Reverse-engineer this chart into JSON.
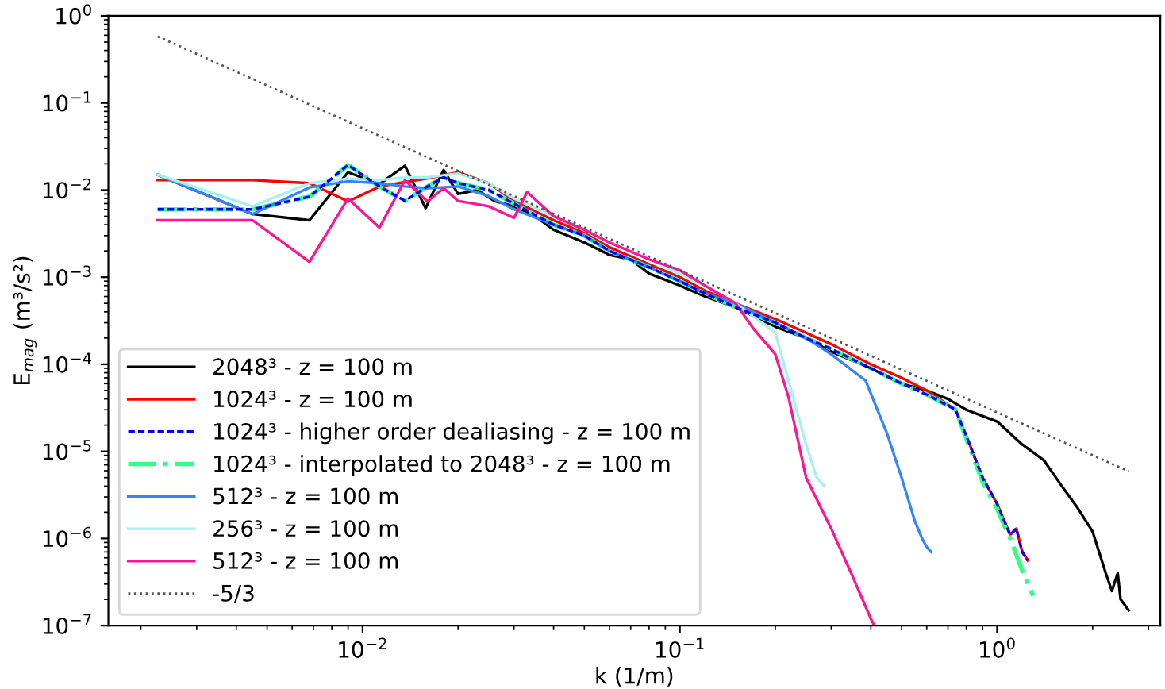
{
  "chart_data": {
    "type": "line",
    "xlabel": "k (1/m)",
    "ylabel": "E$_{mag}$ (m³/s²)",
    "log": "xy",
    "xlim": [
      0.00158,
      3.27
    ],
    "ylim": [
      1e-07,
      1
    ],
    "xticks": [
      {
        "value": 0.01,
        "label": "10$^{−2}$"
      },
      {
        "value": 0.1,
        "label": "10$^{−1}$"
      },
      {
        "value": 1,
        "label": "10$^{0}$"
      }
    ],
    "yticks": [
      {
        "value": 1e-07,
        "label": "10$^{−7}$"
      },
      {
        "value": 1e-06,
        "label": "10$^{−6}$"
      },
      {
        "value": 1e-05,
        "label": "10$^{−5}$"
      },
      {
        "value": 0.0001,
        "label": "10$^{−4}$"
      },
      {
        "value": 0.001,
        "label": "10$^{−3}$"
      },
      {
        "value": 0.01,
        "label": "10$^{−2}$"
      },
      {
        "value": 0.1,
        "label": "10$^{−1}$"
      },
      {
        "value": 1,
        "label": "10$^{0}$"
      }
    ],
    "grid": false,
    "legend": "bottom left",
    "series": [
      {
        "name": "2048³ - z = 100 m",
        "color": "#000000",
        "line_style": "solid",
        "x": [
          0.00226,
          0.0045,
          0.0068,
          0.009,
          0.0113,
          0.0136,
          0.0158,
          0.018,
          0.02,
          0.023,
          0.026,
          0.03,
          0.035,
          0.04,
          0.05,
          0.06,
          0.07,
          0.08,
          0.1,
          0.12,
          0.15,
          0.2,
          0.25,
          0.3,
          0.4,
          0.5,
          0.6,
          0.7,
          0.8,
          1.0,
          1.2,
          1.4,
          1.6,
          1.8,
          2.0,
          2.2,
          2.3,
          2.4,
          2.45,
          2.6
        ],
        "values": [
          0.015,
          0.0053,
          0.0045,
          0.016,
          0.0117,
          0.019,
          0.0062,
          0.017,
          0.009,
          0.01,
          0.0075,
          0.0065,
          0.005,
          0.0035,
          0.0025,
          0.0018,
          0.0016,
          0.0011,
          0.0008,
          0.0006,
          0.00045,
          0.00027,
          0.0002,
          0.00014,
          9e-05,
          6e-05,
          5e-05,
          4e-05,
          3e-05,
          2.2e-05,
          1.2e-05,
          8e-06,
          4e-06,
          2.2e-06,
          1.2e-06,
          4e-07,
          2.5e-07,
          4e-07,
          2e-07,
          1.5e-07
        ]
      },
      {
        "name": "1024³ - z = 100 m",
        "color": "#ff0000",
        "line_style": "solid",
        "x": [
          0.00226,
          0.0045,
          0.0068,
          0.009,
          0.0113,
          0.0158,
          0.02,
          0.025,
          0.03,
          0.04,
          0.05,
          0.06,
          0.08,
          0.1,
          0.12,
          0.15,
          0.2,
          0.25,
          0.3,
          0.4,
          0.5,
          0.6,
          0.74,
          0.8,
          0.9,
          1.0,
          1.1,
          1.15,
          1.2,
          1.25
        ],
        "values": [
          0.013,
          0.013,
          0.012,
          0.0074,
          0.011,
          0.0135,
          0.016,
          0.012,
          0.0075,
          0.0045,
          0.0032,
          0.0022,
          0.0014,
          0.001,
          0.0007,
          0.0005,
          0.00033,
          0.00023,
          0.00017,
          0.0001,
          7e-05,
          5e-05,
          3e-05,
          1.5e-05,
          5e-06,
          2.5e-06,
          1.1e-06,
          1.3e-06,
          7e-07,
          5.6e-07
        ]
      },
      {
        "name": "1024³ - higher order dealiasing - z = 100 m",
        "color": "#0000ff",
        "line_style": "dashed",
        "x": [
          0.00226,
          0.0045,
          0.0068,
          0.009,
          0.0113,
          0.0136,
          0.016,
          0.018,
          0.02,
          0.025,
          0.03,
          0.04,
          0.05,
          0.06,
          0.08,
          0.1,
          0.12,
          0.15,
          0.2,
          0.25,
          0.3,
          0.4,
          0.5,
          0.6,
          0.74,
          0.8,
          0.9,
          1.0,
          1.1,
          1.15,
          1.2,
          1.25
        ],
        "values": [
          0.006,
          0.006,
          0.0084,
          0.0194,
          0.011,
          0.0075,
          0.011,
          0.014,
          0.012,
          0.01,
          0.007,
          0.004,
          0.003,
          0.002,
          0.0013,
          0.0009,
          0.00065,
          0.00045,
          0.0003,
          0.0002,
          0.00015,
          9e-05,
          6e-05,
          4.5e-05,
          3e-05,
          1.5e-05,
          5e-06,
          2.5e-06,
          1.1e-06,
          1.3e-06,
          7e-07,
          5.6e-07
        ]
      },
      {
        "name": "1024³ - interpolated to 2048³ - z = 100 m",
        "color": "#33ff88",
        "line_style": "dashdot",
        "x": [
          0.00226,
          0.0045,
          0.0068,
          0.009,
          0.0113,
          0.0136,
          0.016,
          0.018,
          0.02,
          0.025,
          0.03,
          0.04,
          0.05,
          0.06,
          0.08,
          0.1,
          0.12,
          0.15,
          0.2,
          0.25,
          0.3,
          0.4,
          0.5,
          0.6,
          0.74,
          0.8,
          0.9,
          1.0,
          1.1,
          1.2,
          1.3
        ],
        "values": [
          0.006,
          0.006,
          0.0084,
          0.0194,
          0.011,
          0.0075,
          0.011,
          0.014,
          0.012,
          0.01,
          0.007,
          0.004,
          0.003,
          0.002,
          0.0013,
          0.0009,
          0.00065,
          0.00045,
          0.0003,
          0.0002,
          0.00015,
          9e-05,
          6e-05,
          4.5e-05,
          3e-05,
          1.4e-05,
          4.5e-06,
          2.2e-06,
          1e-06,
          4.3e-07,
          2.2e-07
        ]
      },
      {
        "name": "512³ - z = 100 m",
        "color": "#3385ff",
        "line_style": "solid",
        "x": [
          0.00226,
          0.0045,
          0.0068,
          0.009,
          0.0113,
          0.0136,
          0.016,
          0.02,
          0.025,
          0.03,
          0.04,
          0.05,
          0.06,
          0.08,
          0.1,
          0.12,
          0.15,
          0.2,
          0.25,
          0.3,
          0.385,
          0.45,
          0.5,
          0.55,
          0.58,
          0.6,
          0.62
        ],
        "values": [
          0.015,
          0.0053,
          0.0107,
          0.0126,
          0.012,
          0.011,
          0.0105,
          0.011,
          0.0085,
          0.006,
          0.004,
          0.003,
          0.002,
          0.0013,
          0.0009,
          0.00065,
          0.0005,
          0.0003,
          0.0002,
          0.00013,
          6.5e-05,
          1.6e-05,
          5e-06,
          1.6e-06,
          1e-06,
          8e-07,
          7e-07
        ]
      },
      {
        "name": "256³ - z = 100 m",
        "color": "#a6f0f0",
        "line_style": "solid",
        "x": [
          0.00226,
          0.0045,
          0.0068,
          0.009,
          0.0113,
          0.0136,
          0.016,
          0.02,
          0.025,
          0.03,
          0.04,
          0.05,
          0.06,
          0.08,
          0.1,
          0.12,
          0.15,
          0.2,
          0.22,
          0.25,
          0.27,
          0.285
        ],
        "values": [
          0.015,
          0.0065,
          0.012,
          0.0135,
          0.013,
          0.014,
          0.014,
          0.0155,
          0.012,
          0.008,
          0.005,
          0.0035,
          0.0025,
          0.0016,
          0.0011,
          0.0008,
          0.0005,
          0.00023,
          6.5e-05,
          1.2e-05,
          5e-06,
          4e-06
        ]
      },
      {
        "name": "512³ - z = 100 m",
        "color": "#ff1493",
        "line_style": "solid",
        "x": [
          0.00226,
          0.0045,
          0.0068,
          0.009,
          0.0113,
          0.0136,
          0.016,
          0.018,
          0.02,
          0.025,
          0.03,
          0.033,
          0.04,
          0.05,
          0.06,
          0.08,
          0.1,
          0.12,
          0.15,
          0.17,
          0.2,
          0.22,
          0.25,
          0.3,
          0.35,
          0.4,
          0.41
        ],
        "values": [
          0.0045,
          0.0045,
          0.0015,
          0.008,
          0.0037,
          0.013,
          0.0074,
          0.0105,
          0.0075,
          0.0065,
          0.0048,
          0.0095,
          0.005,
          0.0035,
          0.0025,
          0.0016,
          0.0012,
          0.0008,
          0.0005,
          0.00026,
          0.00013,
          4.2e-05,
          5e-06,
          1.3e-06,
          3.7e-07,
          1.2e-07,
          1e-07
        ]
      },
      {
        "name": "-5/3",
        "color": "#555555",
        "line_style": "dotted",
        "x": [
          0.00226,
          2.6
        ],
        "values": [
          0.58,
          5.9e-06
        ]
      }
    ]
  }
}
